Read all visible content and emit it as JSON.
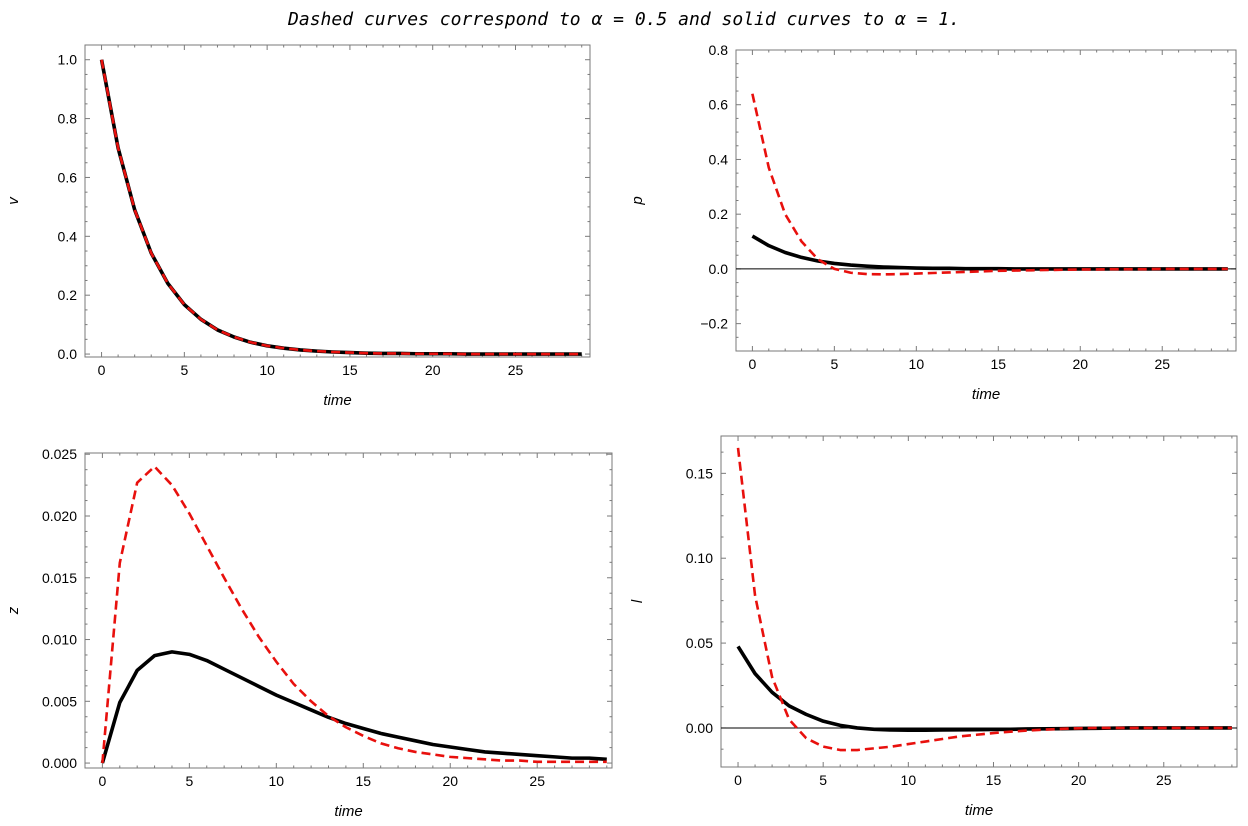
{
  "title": "Dashed curves correspond to α = 0.5 and solid curves to α = 1.",
  "styles": {
    "dashed_color": "#e8100d",
    "solid_color": "#000000"
  },
  "chart_data": [
    {
      "type": "line",
      "xlabel": "time",
      "ylabel": "v",
      "xlim": [
        -1,
        29.5
      ],
      "ylim": [
        -0.01,
        1.05
      ],
      "xticks": [
        0,
        5,
        10,
        15,
        20,
        25
      ],
      "xtick_labels": [
        "0",
        "5",
        "10",
        "15",
        "20",
        "25"
      ],
      "yticks": [
        0.0,
        0.2,
        0.4,
        0.6,
        0.8,
        1.0
      ],
      "ytick_labels": [
        "0.0",
        "0.2",
        "0.4",
        "0.6",
        "0.8",
        "1.0"
      ],
      "zero_line": false,
      "x": [
        0,
        1,
        2,
        3,
        4,
        5,
        6,
        7,
        8,
        9,
        10,
        11,
        12,
        13,
        14,
        15,
        16,
        17,
        18,
        19,
        20,
        21,
        22,
        23,
        24,
        25,
        26,
        27,
        28,
        29
      ],
      "series": [
        {
          "style": "solid",
          "values": [
            1.0,
            0.7,
            0.49,
            0.343,
            0.24,
            0.168,
            0.118,
            0.082,
            0.058,
            0.04,
            0.028,
            0.02,
            0.014,
            0.01,
            0.007,
            0.005,
            0.003,
            0.002,
            0.002,
            0.001,
            0.001,
            0.001,
            0.0,
            0.0,
            0.0,
            0.0,
            0.0,
            0.0,
            0.0,
            0.0
          ]
        },
        {
          "style": "dashed",
          "values": [
            1.0,
            0.7,
            0.49,
            0.343,
            0.24,
            0.168,
            0.118,
            0.082,
            0.058,
            0.04,
            0.028,
            0.02,
            0.014,
            0.01,
            0.007,
            0.005,
            0.003,
            0.002,
            0.002,
            0.001,
            0.001,
            0.001,
            0.0,
            0.0,
            0.0,
            0.0,
            0.0,
            0.0,
            0.0,
            0.0
          ]
        }
      ]
    },
    {
      "type": "line",
      "xlabel": "time",
      "ylabel": "p",
      "xlim": [
        -1,
        29.5
      ],
      "ylim": [
        -0.3,
        0.8
      ],
      "xticks": [
        0,
        5,
        10,
        15,
        20,
        25
      ],
      "xtick_labels": [
        "0",
        "5",
        "10",
        "15",
        "20",
        "25"
      ],
      "yticks": [
        -0.2,
        0.0,
        0.2,
        0.4,
        0.6,
        0.8
      ],
      "ytick_labels": [
        "−0.2",
        "0.0",
        "0.2",
        "0.4",
        "0.6",
        "0.8"
      ],
      "zero_line": true,
      "x": [
        0,
        1,
        2,
        3,
        4,
        5,
        6,
        7,
        8,
        9,
        10,
        11,
        12,
        13,
        14,
        15,
        16,
        17,
        18,
        19,
        20,
        21,
        22,
        23,
        24,
        25,
        26,
        27,
        28,
        29
      ],
      "series": [
        {
          "style": "solid",
          "values": [
            0.12,
            0.085,
            0.06,
            0.042,
            0.029,
            0.02,
            0.014,
            0.01,
            0.007,
            0.005,
            0.003,
            0.002,
            0.002,
            0.001,
            0.001,
            0.001,
            0.0,
            0.0,
            0.0,
            0.0,
            0.0,
            0.0,
            0.0,
            0.0,
            0.0,
            0.0,
            0.0,
            0.0,
            0.0,
            0.0
          ]
        },
        {
          "style": "dashed",
          "values": [
            0.64,
            0.37,
            0.2,
            0.1,
            0.035,
            0.0,
            -0.014,
            -0.019,
            -0.02,
            -0.019,
            -0.017,
            -0.015,
            -0.013,
            -0.011,
            -0.009,
            -0.007,
            -0.006,
            -0.005,
            -0.004,
            -0.003,
            -0.002,
            -0.002,
            -0.001,
            -0.001,
            -0.001,
            0.0,
            0.0,
            0.0,
            0.0,
            0.0
          ]
        }
      ]
    },
    {
      "type": "line",
      "xlabel": "time",
      "ylabel": "z",
      "xlim": [
        -1,
        29.3
      ],
      "ylim": [
        -0.0004,
        0.0251
      ],
      "xticks": [
        0,
        5,
        10,
        15,
        20,
        25
      ],
      "xtick_labels": [
        "0",
        "5",
        "10",
        "15",
        "20",
        "25"
      ],
      "yticks": [
        0.0,
        0.005,
        0.01,
        0.015,
        0.02,
        0.025
      ],
      "ytick_labels": [
        "0.000",
        "0.005",
        "0.010",
        "0.015",
        "0.020",
        "0.025"
      ],
      "zero_line": false,
      "x": [
        0,
        1,
        2,
        3,
        4,
        5,
        6,
        7,
        8,
        9,
        10,
        11,
        12,
        13,
        14,
        15,
        16,
        17,
        18,
        19,
        20,
        21,
        22,
        23,
        24,
        25,
        26,
        27,
        28,
        29
      ],
      "series": [
        {
          "style": "solid",
          "values": [
            0.0,
            0.0049,
            0.0075,
            0.0087,
            0.009,
            0.0088,
            0.0083,
            0.0076,
            0.0069,
            0.0062,
            0.0055,
            0.0049,
            0.0043,
            0.0037,
            0.0032,
            0.0028,
            0.0024,
            0.0021,
            0.0018,
            0.0015,
            0.0013,
            0.0011,
            0.0009,
            0.0008,
            0.0007,
            0.0006,
            0.0005,
            0.0004,
            0.0004,
            0.0003
          ]
        },
        {
          "style": "dashed",
          "values": [
            0.0,
            0.0162,
            0.0227,
            0.024,
            0.0225,
            0.0202,
            0.0176,
            0.015,
            0.0125,
            0.0102,
            0.0082,
            0.0064,
            0.005,
            0.0038,
            0.0029,
            0.0022,
            0.0016,
            0.0012,
            0.0009,
            0.0007,
            0.0005,
            0.0004,
            0.0003,
            0.0002,
            0.0002,
            0.0001,
            0.0001,
            0.0001,
            0.0001,
            0.0001
          ]
        }
      ]
    },
    {
      "type": "line",
      "xlabel": "time",
      "ylabel": "l",
      "xlim": [
        -1,
        29.3
      ],
      "ylim": [
        -0.023,
        0.172
      ],
      "xticks": [
        0,
        5,
        10,
        15,
        20,
        25
      ],
      "xtick_labels": [
        "0",
        "5",
        "10",
        "15",
        "20",
        "25"
      ],
      "yticks": [
        0.0,
        0.05,
        0.1,
        0.15
      ],
      "ytick_labels": [
        "0.00",
        "0.05",
        "0.10",
        "0.15"
      ],
      "zero_line": true,
      "x": [
        0,
        1,
        2,
        3,
        4,
        5,
        6,
        7,
        8,
        9,
        10,
        11,
        12,
        13,
        14,
        15,
        16,
        17,
        18,
        19,
        20,
        21,
        22,
        23,
        24,
        25,
        26,
        27,
        28,
        29
      ],
      "series": [
        {
          "style": "solid",
          "values": [
            0.048,
            0.032,
            0.021,
            0.013,
            0.008,
            0.004,
            0.0015,
            0.0,
            -0.0008,
            -0.0012,
            -0.0013,
            -0.0013,
            -0.0012,
            -0.0011,
            -0.001,
            -0.0009,
            -0.0008,
            -0.0006,
            -0.0005,
            -0.0004,
            -0.0003,
            -0.0002,
            -0.0001,
            0.0,
            0.0,
            0.0,
            0.0,
            0.0,
            0.0,
            0.0
          ]
        },
        {
          "style": "dashed",
          "values": [
            0.165,
            0.078,
            0.03,
            0.005,
            -0.006,
            -0.011,
            -0.013,
            -0.013,
            -0.012,
            -0.011,
            -0.0095,
            -0.008,
            -0.0065,
            -0.005,
            -0.004,
            -0.003,
            -0.0022,
            -0.0015,
            -0.001,
            -0.0005,
            -0.0002,
            0.0,
            0.0,
            0.0,
            0.0,
            0.0,
            0.0,
            0.0,
            0.0,
            0.0
          ]
        }
      ]
    }
  ]
}
